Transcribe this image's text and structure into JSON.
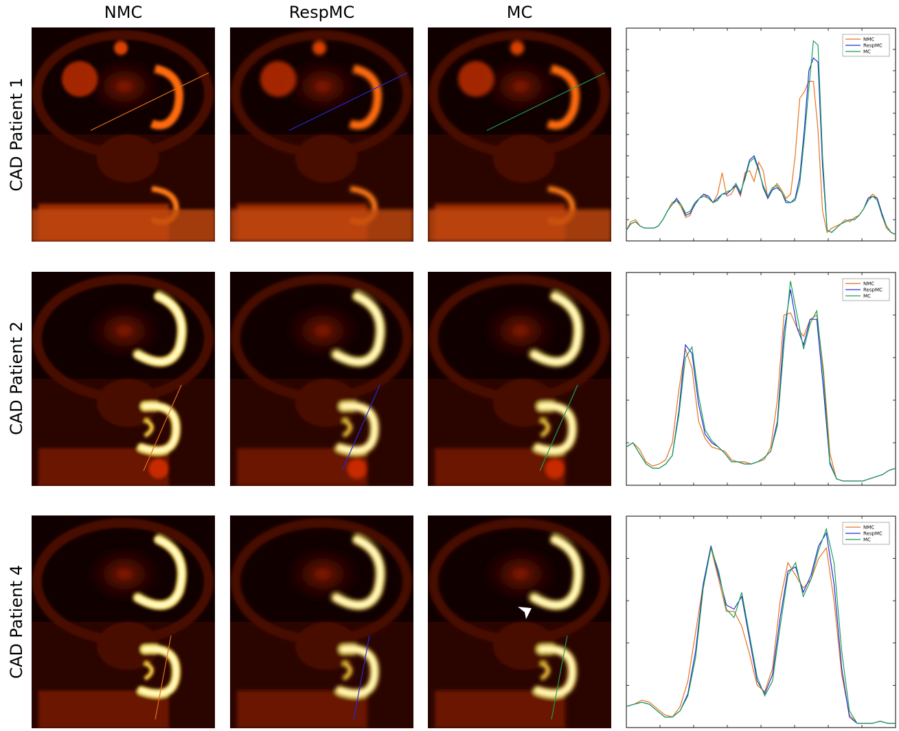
{
  "column_titles": [
    "NMC",
    "RespMC",
    "MC"
  ],
  "row_titles": [
    "CAD Patient 1",
    "CAD Patient 2",
    "CAD Patient 4"
  ],
  "colors": {
    "NMC": "#e8711b",
    "RespMC": "#1f2bd6",
    "MC": "#1a9e55",
    "background": "#ffffff",
    "image_dark": "#0a0000"
  },
  "annotation": {
    "icon": "arrowhead-icon"
  },
  "chart_data": [
    {
      "type": "line",
      "patient": "CAD Patient 1",
      "legend": [
        "NMC",
        "RespMC",
        "MC"
      ],
      "legend_position": "top-right",
      "grid": false,
      "ylim": [
        0,
        1
      ],
      "series": [
        {
          "name": "NMC",
          "values": [
            0.05,
            0.09,
            0.1,
            0.07,
            0.06,
            0.06,
            0.06,
            0.07,
            0.1,
            0.14,
            0.18,
            0.19,
            0.16,
            0.11,
            0.12,
            0.18,
            0.2,
            0.22,
            0.2,
            0.18,
            0.22,
            0.32,
            0.21,
            0.22,
            0.26,
            0.21,
            0.32,
            0.33,
            0.28,
            0.37,
            0.33,
            0.2,
            0.24,
            0.27,
            0.24,
            0.2,
            0.22,
            0.4,
            0.67,
            0.7,
            0.75,
            0.75,
            0.52,
            0.14,
            0.04,
            0.06,
            0.07,
            0.08,
            0.1,
            0.09,
            0.11,
            0.12,
            0.15,
            0.2,
            0.22,
            0.2,
            0.12,
            0.06,
            0.04,
            0.03
          ]
        },
        {
          "name": "RespMC",
          "values": [
            0.05,
            0.08,
            0.09,
            0.07,
            0.06,
            0.06,
            0.06,
            0.07,
            0.1,
            0.14,
            0.17,
            0.2,
            0.17,
            0.12,
            0.13,
            0.17,
            0.2,
            0.22,
            0.21,
            0.18,
            0.2,
            0.22,
            0.22,
            0.24,
            0.26,
            0.22,
            0.3,
            0.38,
            0.4,
            0.34,
            0.25,
            0.2,
            0.24,
            0.25,
            0.23,
            0.18,
            0.18,
            0.2,
            0.3,
            0.52,
            0.8,
            0.86,
            0.84,
            0.35,
            0.05,
            0.04,
            0.06,
            0.08,
            0.09,
            0.1,
            0.1,
            0.12,
            0.15,
            0.2,
            0.21,
            0.2,
            0.13,
            0.07,
            0.04,
            0.03
          ]
        },
        {
          "name": "MC",
          "values": [
            0.05,
            0.08,
            0.09,
            0.07,
            0.06,
            0.06,
            0.06,
            0.07,
            0.1,
            0.14,
            0.17,
            0.19,
            0.17,
            0.13,
            0.14,
            0.18,
            0.2,
            0.21,
            0.2,
            0.18,
            0.19,
            0.22,
            0.23,
            0.24,
            0.27,
            0.23,
            0.29,
            0.37,
            0.39,
            0.33,
            0.26,
            0.21,
            0.25,
            0.26,
            0.23,
            0.19,
            0.18,
            0.19,
            0.27,
            0.48,
            0.72,
            0.94,
            0.92,
            0.4,
            0.05,
            0.04,
            0.06,
            0.08,
            0.09,
            0.1,
            0.1,
            0.12,
            0.15,
            0.19,
            0.21,
            0.19,
            0.12,
            0.07,
            0.04,
            0.03
          ]
        }
      ]
    },
    {
      "type": "line",
      "patient": "CAD Patient 2",
      "legend": [
        "NMC",
        "RespMC",
        "MC"
      ],
      "legend_position": "top-right",
      "grid": false,
      "ylim": [
        0,
        1
      ],
      "series": [
        {
          "name": "NMC",
          "values": [
            0.18,
            0.2,
            0.17,
            0.11,
            0.09,
            0.1,
            0.12,
            0.2,
            0.45,
            0.64,
            0.55,
            0.3,
            0.22,
            0.18,
            0.17,
            0.16,
            0.12,
            0.11,
            0.11,
            0.1,
            0.11,
            0.12,
            0.18,
            0.4,
            0.8,
            0.81,
            0.74,
            0.7,
            0.78,
            0.8,
            0.55,
            0.15,
            0.03,
            0.02,
            0.02,
            0.02,
            0.02,
            0.03,
            0.04,
            0.05,
            0.07,
            0.08
          ]
        },
        {
          "name": "RespMC",
          "values": [
            0.18,
            0.2,
            0.15,
            0.1,
            0.08,
            0.08,
            0.1,
            0.14,
            0.35,
            0.66,
            0.62,
            0.38,
            0.24,
            0.2,
            0.18,
            0.15,
            0.11,
            0.11,
            0.1,
            0.1,
            0.11,
            0.13,
            0.16,
            0.3,
            0.72,
            0.92,
            0.74,
            0.66,
            0.78,
            0.78,
            0.46,
            0.1,
            0.03,
            0.02,
            0.02,
            0.02,
            0.02,
            0.03,
            0.04,
            0.05,
            0.07,
            0.08
          ]
        },
        {
          "name": "MC",
          "values": [
            0.18,
            0.2,
            0.15,
            0.1,
            0.08,
            0.08,
            0.1,
            0.14,
            0.33,
            0.6,
            0.65,
            0.42,
            0.26,
            0.21,
            0.18,
            0.15,
            0.11,
            0.11,
            0.1,
            0.1,
            0.11,
            0.13,
            0.16,
            0.28,
            0.66,
            0.96,
            0.8,
            0.64,
            0.76,
            0.82,
            0.52,
            0.11,
            0.03,
            0.02,
            0.02,
            0.02,
            0.02,
            0.03,
            0.04,
            0.05,
            0.07,
            0.08
          ]
        }
      ]
    },
    {
      "type": "line",
      "patient": "CAD Patient 4",
      "legend": [
        "NMC",
        "RespMC",
        "MC"
      ],
      "legend_position": "top-right",
      "grid": false,
      "ylim": [
        0,
        1
      ],
      "series": [
        {
          "name": "NMC",
          "values": [
            0.1,
            0.11,
            0.13,
            0.12,
            0.09,
            0.06,
            0.05,
            0.1,
            0.22,
            0.45,
            0.68,
            0.85,
            0.7,
            0.55,
            0.55,
            0.48,
            0.35,
            0.2,
            0.17,
            0.28,
            0.6,
            0.78,
            0.72,
            0.66,
            0.7,
            0.8,
            0.85,
            0.6,
            0.25,
            0.06,
            0.02,
            0.02,
            0.02,
            0.03,
            0.02,
            0.02
          ]
        },
        {
          "name": "RespMC",
          "values": [
            0.1,
            0.11,
            0.12,
            0.11,
            0.08,
            0.05,
            0.05,
            0.08,
            0.16,
            0.36,
            0.68,
            0.86,
            0.72,
            0.58,
            0.56,
            0.62,
            0.42,
            0.22,
            0.16,
            0.25,
            0.52,
            0.74,
            0.76,
            0.64,
            0.72,
            0.86,
            0.92,
            0.68,
            0.28,
            0.05,
            0.02,
            0.02,
            0.02,
            0.03,
            0.02,
            0.02
          ]
        },
        {
          "name": "MC",
          "values": [
            0.1,
            0.11,
            0.12,
            0.11,
            0.08,
            0.05,
            0.05,
            0.08,
            0.15,
            0.33,
            0.66,
            0.85,
            0.74,
            0.56,
            0.52,
            0.64,
            0.44,
            0.24,
            0.15,
            0.22,
            0.48,
            0.72,
            0.78,
            0.62,
            0.7,
            0.84,
            0.94,
            0.78,
            0.36,
            0.08,
            0.02,
            0.02,
            0.02,
            0.03,
            0.02,
            0.02
          ]
        }
      ]
    }
  ]
}
